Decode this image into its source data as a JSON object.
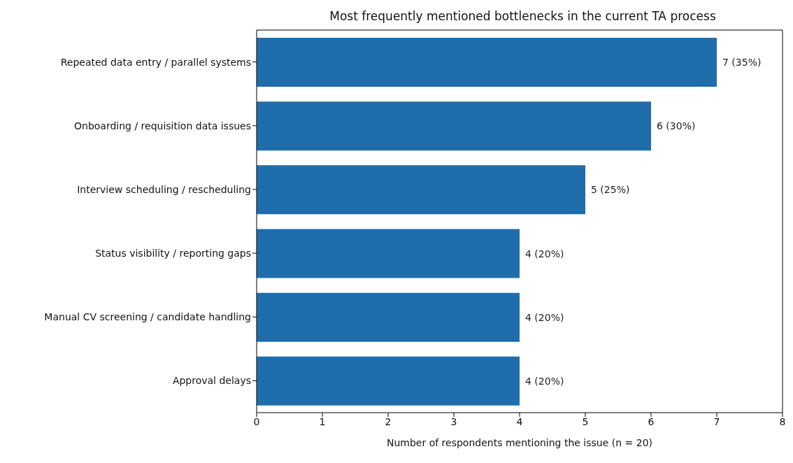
{
  "chart_data": {
    "type": "bar",
    "orientation": "horizontal",
    "title": "Most frequently mentioned bottlenecks in the current TA process",
    "xlabel": "Number of respondents mentioning the issue (n = 20)",
    "categories": [
      "Repeated data entry / parallel systems",
      "Onboarding / requisition data issues",
      "Interview scheduling / rescheduling",
      "Status visibility / reporting gaps",
      "Manual CV screening / candidate handling",
      "Approval delays"
    ],
    "values": [
      7,
      6,
      5,
      4,
      4,
      4
    ],
    "value_labels": [
      "7 (35%)",
      "6 (30%)",
      "5 (25%)",
      "4 (20%)",
      "4 (20%)",
      "4 (20%)"
    ],
    "color": "#1f6dab",
    "xlim": [
      0,
      8
    ],
    "xticks": [
      0,
      1,
      2,
      3,
      4,
      5,
      6,
      7,
      8
    ],
    "grid": false,
    "legend": false
  }
}
